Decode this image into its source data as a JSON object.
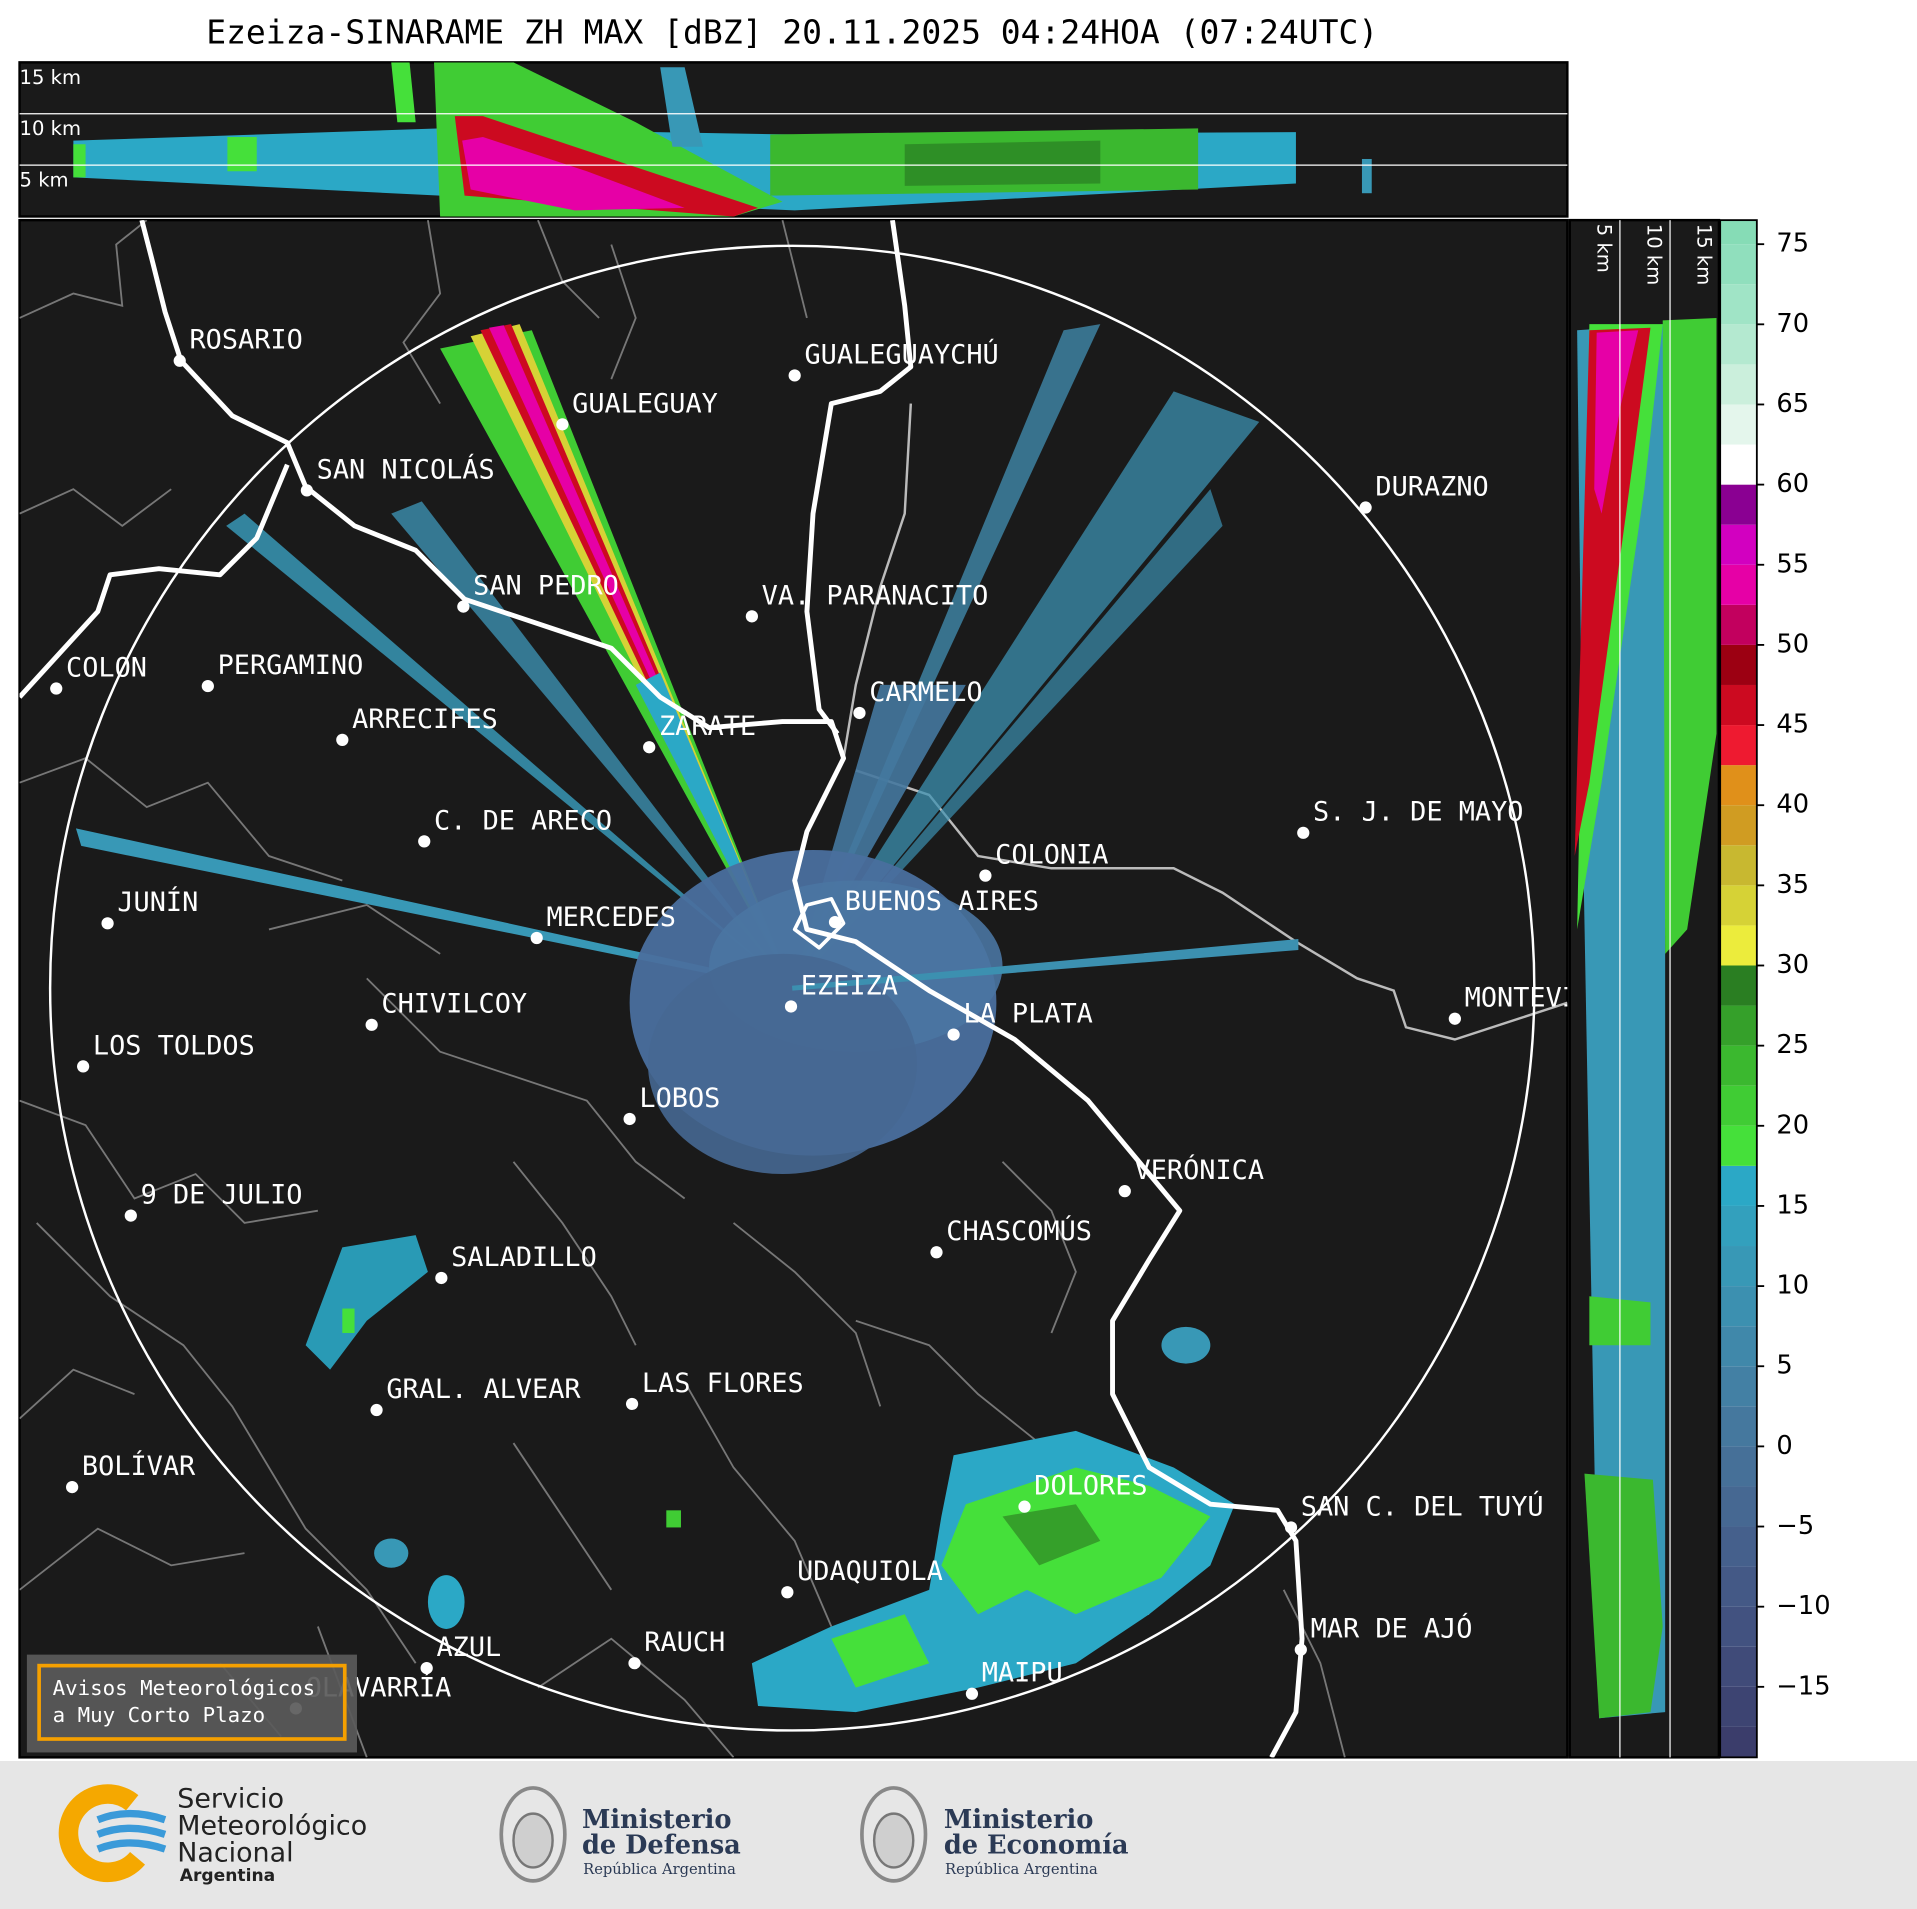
{
  "title": "Ezeiza-SINARAME ZH MAX [dBZ] 20.11.2025 04:24HOA (07:24UTC)",
  "profile_top": {
    "labels": [
      "15 km",
      "10 km",
      "5 km"
    ]
  },
  "profile_side": {
    "labels": [
      "5 km",
      "10 km",
      "15 km"
    ]
  },
  "colorbar": {
    "lim": [
      -19.4,
      76.5
    ],
    "ticks": [
      {
        "value": -15,
        "label": "−15"
      },
      {
        "value": -10,
        "label": "−10"
      },
      {
        "value": -5,
        "label": "−5"
      },
      0,
      5,
      10,
      15,
      20,
      25,
      30,
      35,
      40,
      45,
      50,
      55,
      60,
      65,
      70,
      75
    ],
    "bounds": [
      -19.4,
      -17.5,
      -15,
      -12.5,
      -10,
      -7.5,
      -5,
      -2.5,
      0,
      2.5,
      5,
      7.5,
      10,
      12.5,
      15,
      17.5,
      20,
      22.5,
      25,
      27.5,
      30,
      32.5,
      35,
      37.5,
      40,
      42.5,
      45,
      47.5,
      50,
      52.5,
      55,
      57.5,
      60,
      62.5,
      65,
      67.5,
      70,
      72.5,
      75,
      76.5
    ],
    "colors": [
      "#3b3d6b",
      "#3d4472",
      "#404b79",
      "#425280",
      "#445986",
      "#45608c",
      "#466892",
      "#467098",
      "#45789e",
      "#4380a4",
      "#4088aa",
      "#3c90b0",
      "#3898b6",
      "#33a0bd",
      "#2ba8c6",
      "#45e03a",
      "#40cc34",
      "#3bb82f",
      "#35a02a",
      "#2a7e22",
      "#ecec3c",
      "#d6d236",
      "#c8b830",
      "#d09c22",
      "#e0901a",
      "#ee1a30",
      "#cc0a20",
      "#9c0012",
      "#c2005e",
      "#e600a6",
      "#d200c0",
      "#8a0092",
      "#ffffff",
      "#e4f6ec",
      "#cbefdc",
      "#b4e9d0",
      "#a0e4c6",
      "#90dfbd",
      "#86dcb6"
    ]
  },
  "cities": [
    "ROSARIO",
    "GUALEGUAYCHÚ",
    "GUALEGUAY",
    "SAN NICOLÁS",
    "DURAZNO",
    "SAN PEDRO",
    "VA. PARANACITO",
    "COLON",
    "PERGAMINO",
    "CARMELO",
    "ARRECIFES",
    "ZÁRATE",
    "C. DE ARECO",
    "S. J. DE MAYO",
    "COLONIA",
    "BUENOS AIRES",
    "JUNÍN",
    "MERCEDES",
    "EZEIZA",
    "MONTEVIDEO",
    "CHIVILCOY",
    "LA PLATA",
    "LOS TOLDOS",
    "LOBOS",
    "VERÓNICA",
    "9 DE JULIO",
    "CHASCOMÚS",
    "SALADILLO",
    "GRAL. ALVEAR",
    "LAS FLORES",
    "BOLÍVAR",
    "DOLORES",
    "SAN C. DEL TUYÚ",
    "UDAQUIOLA",
    "MAR DE AJÓ",
    "AZUL",
    "RAUCH",
    "OLAVARRÍA",
    "MAIPU"
  ],
  "notice": [
    "Avisos Meteorológicos",
    "a Muy Corto Plazo"
  ],
  "logos": {
    "smn": [
      "Servicio",
      "Meteorológico",
      "Nacional",
      "Argentina"
    ],
    "defensa": [
      "Ministerio",
      "de Defensa",
      "República Argentina"
    ],
    "economia": [
      "Ministerio",
      "de Economía",
      "República Argentina"
    ]
  }
}
